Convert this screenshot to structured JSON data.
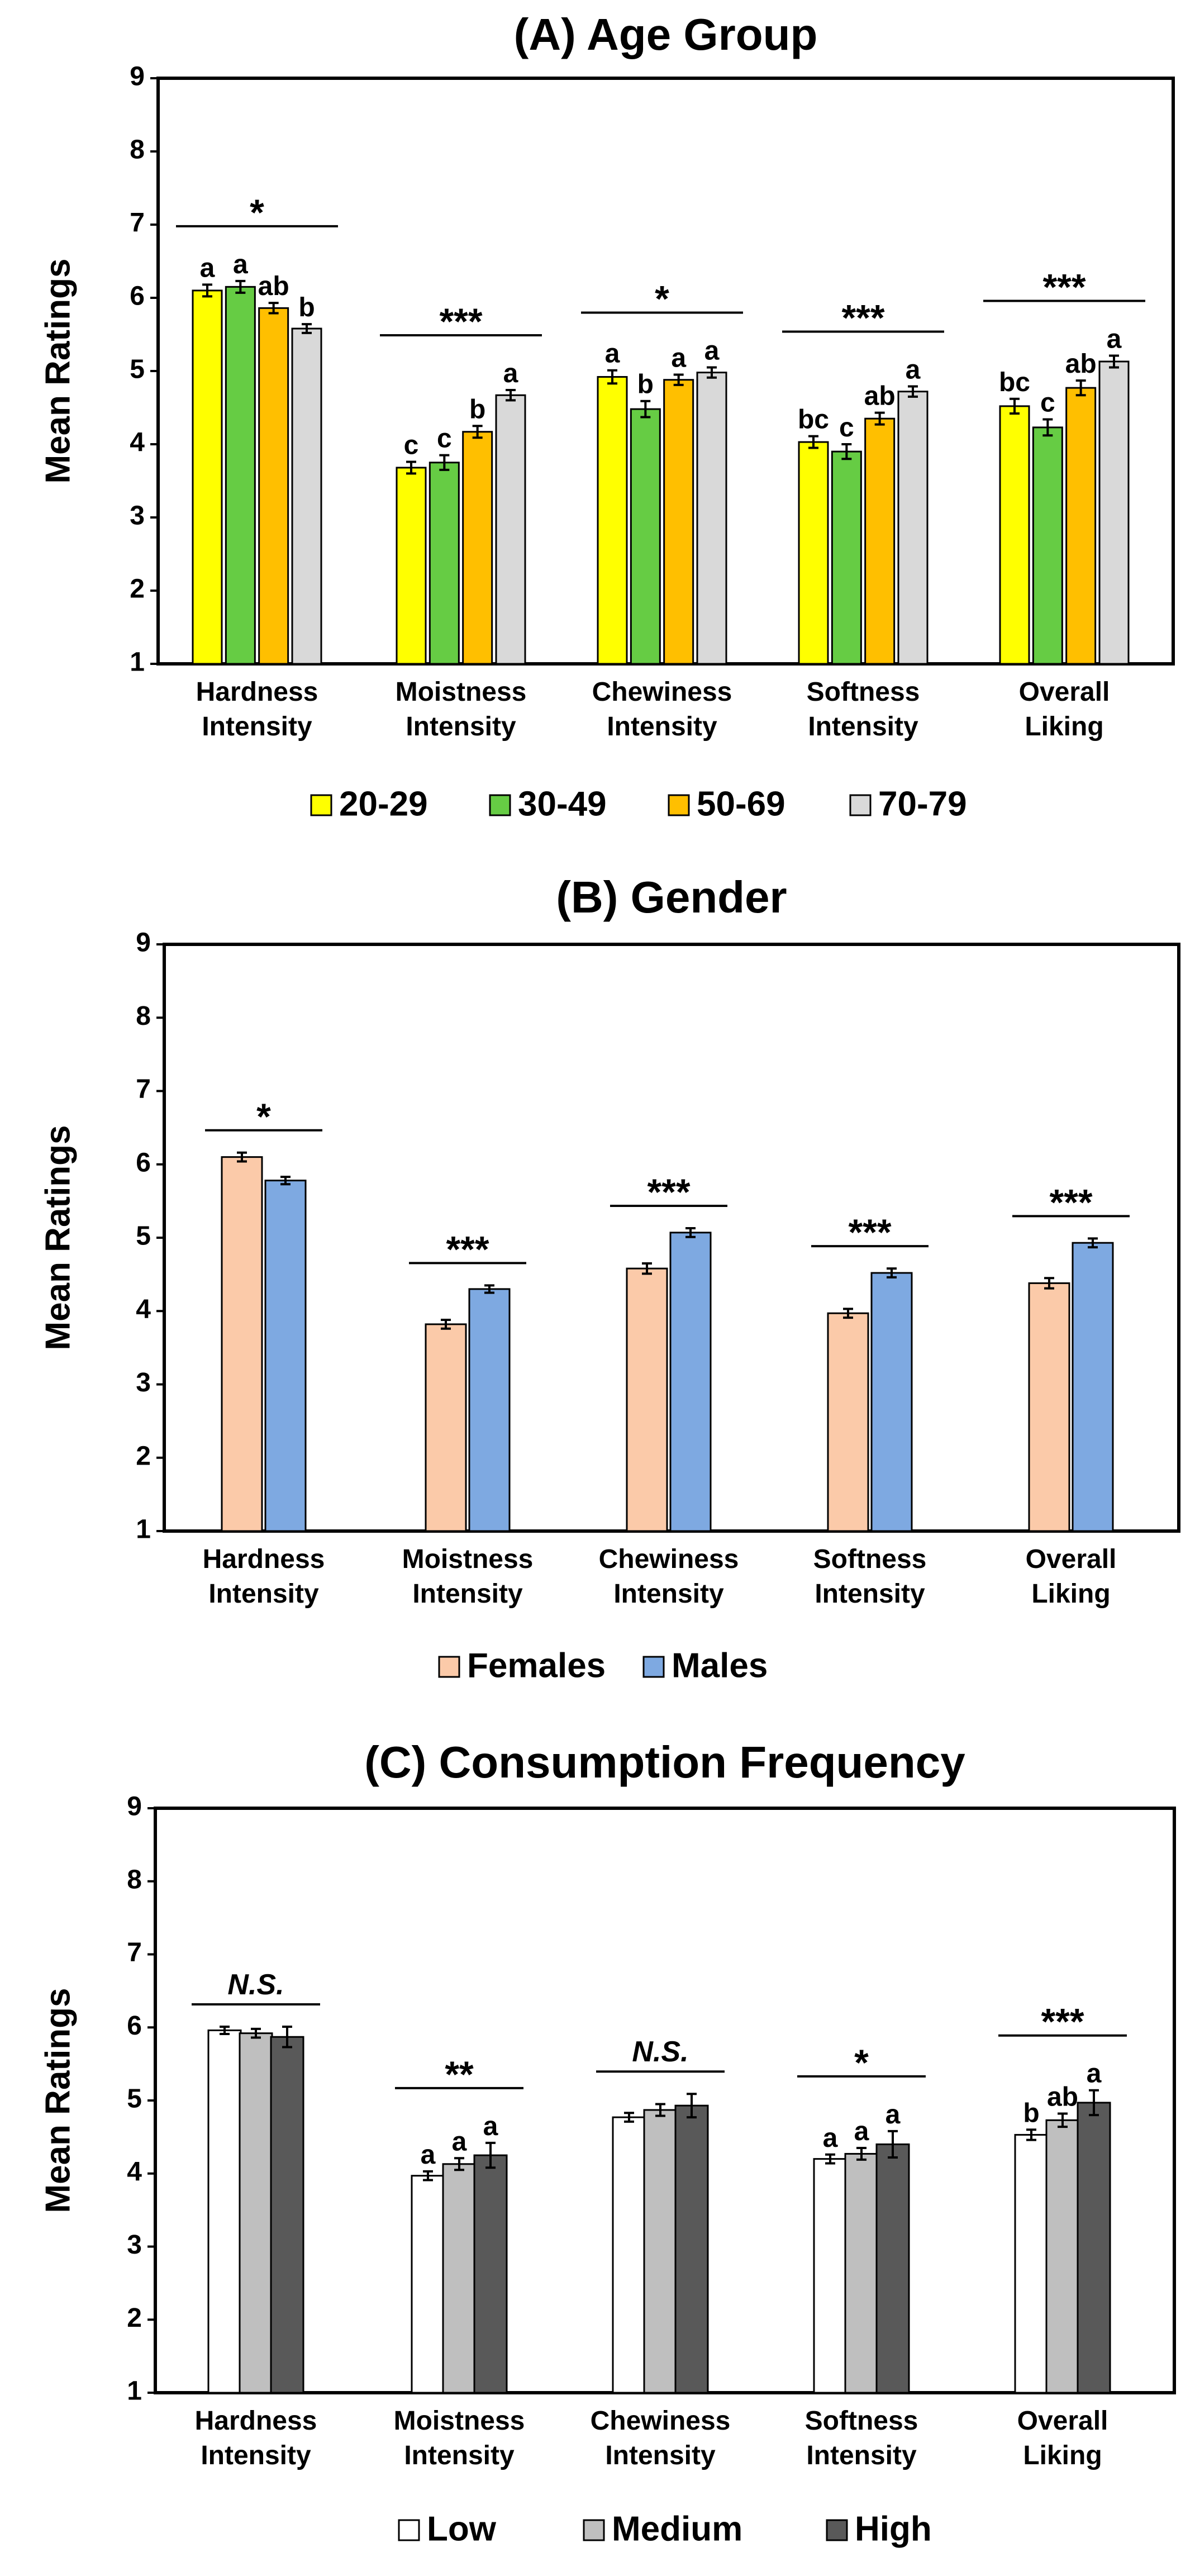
{
  "chart_data": [
    {
      "type": "bar",
      "title": "(A) Age Group",
      "ylabel": "Mean Ratings",
      "xlabel": "",
      "ylim": [
        1,
        9
      ],
      "yticks": [
        "1",
        "2",
        "3",
        "4",
        "5",
        "6",
        "7",
        "8",
        "9"
      ],
      "grid": false,
      "legend_position": "bottom",
      "categories": [
        "Hardness\nIntensity",
        "Moistness\nIntensity",
        "Chewiness\nIntensity",
        "Softness\nIntensity",
        "Overall\nLiking"
      ],
      "series": [
        {
          "name": "20-29",
          "color": "#ffff00",
          "values": [
            6.1,
            3.68,
            4.92,
            4.03,
            4.52
          ],
          "errors": [
            0.08,
            0.08,
            0.09,
            0.08,
            0.1
          ],
          "letters": [
            "a",
            "c",
            "a",
            "bc",
            "bc"
          ]
        },
        {
          "name": "30-49",
          "color": "#66cc44",
          "values": [
            6.15,
            3.75,
            4.48,
            3.9,
            4.23
          ],
          "errors": [
            0.08,
            0.1,
            0.11,
            0.1,
            0.11
          ],
          "letters": [
            "a",
            "c",
            "b",
            "c",
            "c"
          ]
        },
        {
          "name": "50-69",
          "color": "#ffbf00",
          "values": [
            5.86,
            4.17,
            4.88,
            4.35,
            4.77
          ],
          "errors": [
            0.07,
            0.08,
            0.07,
            0.08,
            0.1
          ],
          "letters": [
            "ab",
            "b",
            "a",
            "ab",
            "ab"
          ]
        },
        {
          "name": "70-79",
          "color": "#d9d9d9",
          "values": [
            5.58,
            4.67,
            4.98,
            4.72,
            5.13
          ],
          "errors": [
            0.06,
            0.07,
            0.07,
            0.07,
            0.08
          ],
          "letters": [
            "b",
            "a",
            "a",
            "a",
            "a"
          ]
        }
      ],
      "significance": [
        "*",
        "***",
        "*",
        "***",
        "***"
      ]
    },
    {
      "type": "bar",
      "title": "(B) Gender",
      "ylabel": "Mean Ratings",
      "xlabel": "",
      "ylim": [
        1,
        9
      ],
      "yticks": [
        "1",
        "2",
        "3",
        "4",
        "5",
        "6",
        "7",
        "8",
        "9"
      ],
      "grid": false,
      "legend_position": "bottom",
      "categories": [
        "Hardness\nIntensity",
        "Moistness\nIntensity",
        "Chewiness\nIntensity",
        "Softness\nIntensity",
        "Overall\nLiking"
      ],
      "series": [
        {
          "name": "Females",
          "color": "#fbcaa9",
          "values": [
            6.1,
            3.82,
            4.58,
            3.97,
            4.38
          ],
          "errors": [
            0.06,
            0.06,
            0.07,
            0.06,
            0.07
          ],
          "letters": [
            "",
            "",
            "",
            "",
            ""
          ]
        },
        {
          "name": "Males",
          "color": "#7ea9e1",
          "values": [
            5.78,
            4.3,
            5.07,
            4.52,
            4.93
          ],
          "errors": [
            0.05,
            0.05,
            0.06,
            0.06,
            0.06
          ],
          "letters": [
            "",
            "",
            "",
            "",
            ""
          ]
        }
      ],
      "significance": [
        "*",
        "***",
        "***",
        "***",
        "***"
      ]
    },
    {
      "type": "bar",
      "title": "(C) Consumption Frequency",
      "ylabel": "Mean Ratings",
      "xlabel": "",
      "ylim": [
        1,
        9
      ],
      "yticks": [
        "1",
        "2",
        "3",
        "4",
        "5",
        "6",
        "7",
        "8",
        "9"
      ],
      "grid": false,
      "legend_position": "bottom",
      "categories": [
        "Hardness\nIntensity",
        "Moistness\nIntensity",
        "Chewiness\nIntensity",
        "Softness\nIntensity",
        "Overall\nLiking"
      ],
      "series": [
        {
          "name": "Low",
          "color": "#ffffff",
          "values": [
            5.96,
            3.97,
            4.77,
            4.2,
            4.53
          ],
          "errors": [
            0.05,
            0.06,
            0.06,
            0.06,
            0.07
          ],
          "letters": [
            "",
            "a",
            "",
            "a",
            "b"
          ]
        },
        {
          "name": "Medium",
          "color": "#bfbfbf",
          "values": [
            5.92,
            4.13,
            4.87,
            4.27,
            4.73
          ],
          "errors": [
            0.06,
            0.08,
            0.08,
            0.08,
            0.09
          ],
          "letters": [
            "",
            "a",
            "",
            "a",
            "ab"
          ]
        },
        {
          "name": "High",
          "color": "#595959",
          "values": [
            5.87,
            4.25,
            4.93,
            4.4,
            4.97
          ],
          "errors": [
            0.14,
            0.17,
            0.16,
            0.18,
            0.17
          ],
          "letters": [
            "",
            "a",
            "",
            "a",
            "a"
          ]
        }
      ],
      "significance": [
        "N.S.",
        "**",
        "N.S.",
        "*",
        "***"
      ]
    }
  ]
}
